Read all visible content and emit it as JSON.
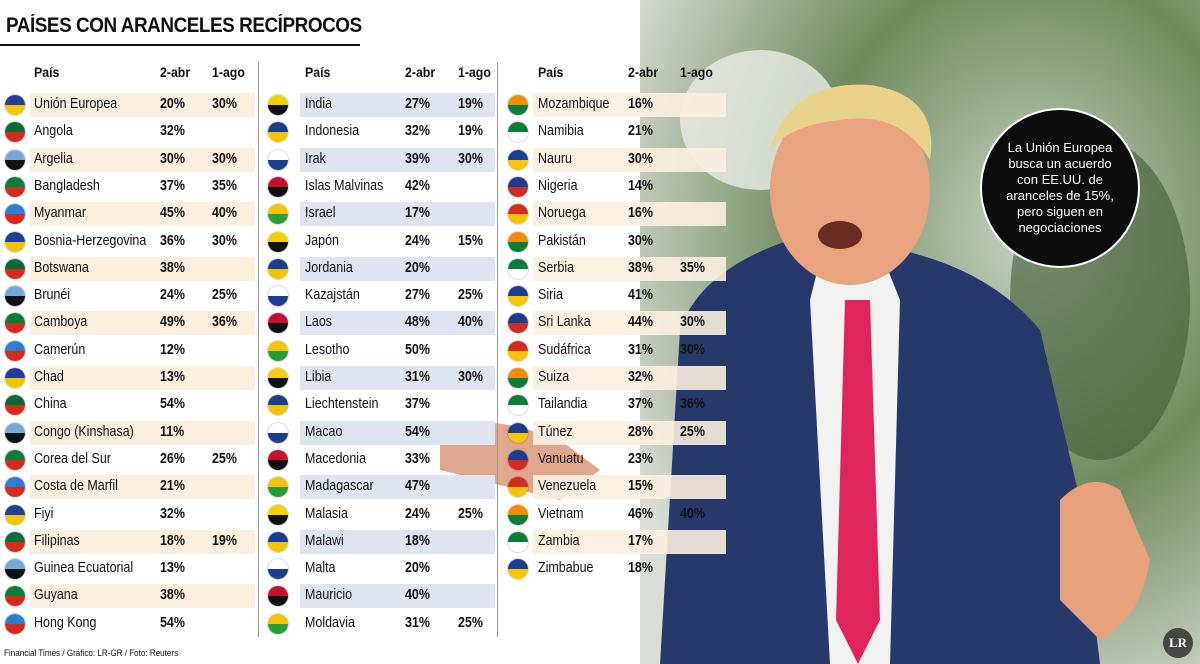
{
  "title": "PAÍSES CON ARANCELES RECÍPROCOS",
  "tables": [
    {
      "headers": [
        "País",
        "2-abr",
        "1-ago"
      ],
      "rows": [
        [
          "Unión Europea",
          "20%",
          "30%"
        ],
        [
          "Angola",
          "32%",
          null
        ],
        [
          "Argelia",
          "30%",
          "30%"
        ],
        [
          "Bangladesh",
          "37%",
          "35%"
        ],
        [
          "Myanmar",
          "45%",
          "40%"
        ],
        [
          "Bosnia-Herzegovina",
          "36%",
          "30%"
        ],
        [
          "Botswana",
          "38%",
          null
        ],
        [
          "Brunéi",
          "24%",
          "25%"
        ],
        [
          "Camboya",
          "49%",
          "36%"
        ],
        [
          "Camerún",
          "12%",
          null
        ],
        [
          "Chad",
          "13%",
          null
        ],
        [
          "China",
          "54%",
          null
        ],
        [
          "Congo (Kinshasa)",
          "11%",
          null
        ],
        [
          "Corea del Sur",
          "26%",
          "25%"
        ],
        [
          "Costa de Marfil",
          "21%",
          null
        ],
        [
          "Fiyi",
          "32%",
          null
        ],
        [
          "Filipinas",
          "18%",
          "19%"
        ],
        [
          "Guinea Ecuatorial",
          "13%",
          null
        ],
        [
          "Guyana",
          "38%",
          null
        ],
        [
          "Hong Kong",
          "54%",
          null
        ]
      ]
    },
    {
      "headers": [
        "País",
        "2-abr",
        "1-ago"
      ],
      "rows": [
        [
          "India",
          "27%",
          "19%"
        ],
        [
          "Indonesia",
          "32%",
          "19%"
        ],
        [
          "Irak",
          "39%",
          "30%"
        ],
        [
          "Islas Malvinas",
          "42%",
          null
        ],
        [
          "Israel",
          "17%",
          null
        ],
        [
          "Japón",
          "24%",
          "15%"
        ],
        [
          "Jordania",
          "20%",
          null
        ],
        [
          "Kazajstán",
          "27%",
          "25%"
        ],
        [
          "Laos",
          "48%",
          "40%"
        ],
        [
          "Lesotho",
          "50%",
          null
        ],
        [
          "Libia",
          "31%",
          "30%"
        ],
        [
          "Liechtenstein",
          "37%",
          null
        ],
        [
          "Macao",
          "54%",
          null
        ],
        [
          "Macedonia",
          "33%",
          null
        ],
        [
          "Madagascar",
          "47%",
          null
        ],
        [
          "Malasia",
          "24%",
          "25%"
        ],
        [
          "Malawi",
          "18%",
          null
        ],
        [
          "Malta",
          "20%",
          null
        ],
        [
          "Mauricio",
          "40%",
          null
        ],
        [
          "Moldavia",
          "31%",
          "25%"
        ]
      ]
    },
    {
      "headers": [
        "País",
        "2-abr",
        "1-ago"
      ],
      "rows": [
        [
          "Mozambique",
          "16%",
          null
        ],
        [
          "Namibia",
          "21%",
          null
        ],
        [
          "Nauru",
          "30%",
          null
        ],
        [
          "Nigeria",
          "14%",
          null
        ],
        [
          "Noruega",
          "16%",
          null
        ],
        [
          "Pakistán",
          "30%",
          null
        ],
        [
          "Serbia",
          "38%",
          "35%"
        ],
        [
          "Siria",
          "41%",
          null
        ],
        [
          "Sri Lanka",
          "44%",
          "30%"
        ],
        [
          "Sudáfrica",
          "31%",
          "30%"
        ],
        [
          "Suiza",
          "32%",
          null
        ],
        [
          "Tailandia",
          "37%",
          "36%"
        ],
        [
          "Túnez",
          "28%",
          "25%"
        ],
        [
          "Vanuatu",
          "23%",
          null
        ],
        [
          "Venezuela",
          "15%",
          null
        ],
        [
          "Vietnam",
          "46%",
          "40%"
        ],
        [
          "Zambia",
          "17%",
          null
        ],
        [
          "Zimbabue",
          "18%",
          null
        ]
      ]
    }
  ],
  "callout": "La Unión Europea busca un acuerdo con EE.UU. de aranceles de 15%, pero siguen en negociaciones",
  "footer": "Financial Times / Gráfico: LR-GR / Foto: Reuters",
  "logo": "LR"
}
